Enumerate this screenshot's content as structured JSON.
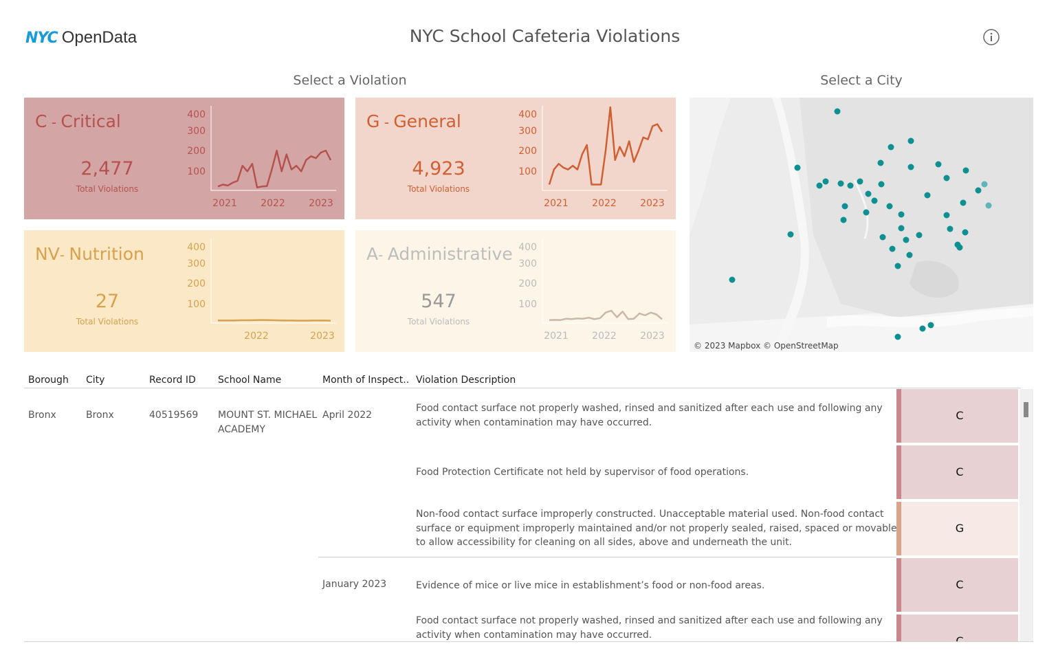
{
  "header": {
    "logo_nyc": "NYC",
    "logo_opendata": "OpenData",
    "title": "NYC School Cafeteria Violations",
    "info_icon": "info-circle-icon"
  },
  "sections": {
    "violation_title": "Select a Violation",
    "city_title": "Select a City"
  },
  "cards": [
    {
      "code": "C",
      "sep": " - ",
      "name": "Critical",
      "total": "2,477",
      "total_label": "Total Violations",
      "bg": "#d4a5a5",
      "color": "#b5524f",
      "muted": "#b5524f",
      "yticks": [
        "400",
        "300",
        "200",
        "100"
      ],
      "xticks": [
        "2021",
        "2022",
        "2023"
      ],
      "series": [
        10,
        20,
        15,
        30,
        40,
        120,
        90,
        130,
        5,
        10,
        12,
        100,
        200,
        90,
        180,
        100,
        120,
        90,
        150,
        170,
        160,
        190,
        200,
        150
      ]
    },
    {
      "code": "G",
      "sep": " - ",
      "name": "General",
      "total": "4,923",
      "total_label": "Total Violations",
      "bg": "#f2d5cb",
      "color": "#cf6033",
      "muted": "#cf6033",
      "yticks": [
        "400",
        "300",
        "200",
        "100"
      ],
      "xticks": [
        "2021",
        "2022",
        "2023"
      ],
      "series": [
        20,
        100,
        130,
        110,
        100,
        120,
        100,
        180,
        230,
        20,
        20,
        20,
        200,
        430,
        150,
        220,
        170,
        250,
        140,
        200,
        270,
        260,
        330,
        340,
        300
      ]
    },
    {
      "code": "NV",
      "sep": "- ",
      "name": "Nutrition",
      "total": "27",
      "total_label": "Total Violations",
      "bg": "#fbe8c6",
      "color": "#d7a14e",
      "muted": "#d7a14e",
      "yticks": [
        "400",
        "300",
        "200",
        "100"
      ],
      "xticks": [
        "2022",
        "2023"
      ],
      "series": [
        3,
        3,
        3,
        4,
        4,
        5,
        5,
        4,
        3,
        3,
        2,
        2,
        3,
        3,
        2
      ]
    },
    {
      "code": "A",
      "sep": "- ",
      "name": "Administrative",
      "total": "547",
      "total_label": "Total Violations",
      "bg": "#fcf5e8",
      "color": "#c9b8a9",
      "muted": "#bdbdbd",
      "yticks": [
        "400",
        "300",
        "200",
        "100"
      ],
      "xticks": [
        "2021",
        "2022",
        "2023"
      ],
      "series": [
        5,
        6,
        5,
        12,
        10,
        14,
        12,
        18,
        10,
        15,
        45,
        55,
        20,
        50,
        10,
        12,
        40,
        30,
        45,
        35,
        10
      ]
    }
  ],
  "map": {
    "attribution": "© 2023 Mapbox © OpenStreetMap",
    "dot_color": "#0e8f92",
    "dot_light": "#5db5b7"
  },
  "table": {
    "headers": [
      "Borough",
      "City",
      "Record ID",
      "School Name",
      "Month of Inspect..",
      "Violation Description"
    ],
    "row": {
      "borough": "Bronx",
      "city": "Bronx",
      "record_id": "40519569",
      "school_name": "MOUNT ST. MICHAEL ACADEMY",
      "months": [
        "April 2022",
        "January 2023"
      ]
    },
    "violations": [
      {
        "desc": "Food contact surface not properly washed, rinsed and sanitized after each use and following any activity when contamination may have occurred.",
        "grade": "C"
      },
      {
        "desc": "Food Protection Certificate not held by supervisor of food operations.",
        "grade": "C"
      },
      {
        "desc": "Non-food contact surface improperly constructed. Unacceptable material used. Non-food contact surface or equipment improperly maintained and/or not properly sealed, raised, spaced or movable to allow accessibility for cleaning on all sides, above and underneath the unit.",
        "grade": "G"
      },
      {
        "desc": "Evidence of mice or live mice in establishment’s food or non-food areas.",
        "grade": "C"
      },
      {
        "desc": "Food contact surface not properly washed, rinsed and sanitized after each use and following any activity when contamination may have occurred.",
        "grade": "C"
      }
    ],
    "grade_colors": {
      "C": {
        "stripe": "#c9868b",
        "fill": "#e8d1d2"
      },
      "G": {
        "stripe": "#dba28a",
        "fill": "#f7e9e5"
      }
    }
  }
}
